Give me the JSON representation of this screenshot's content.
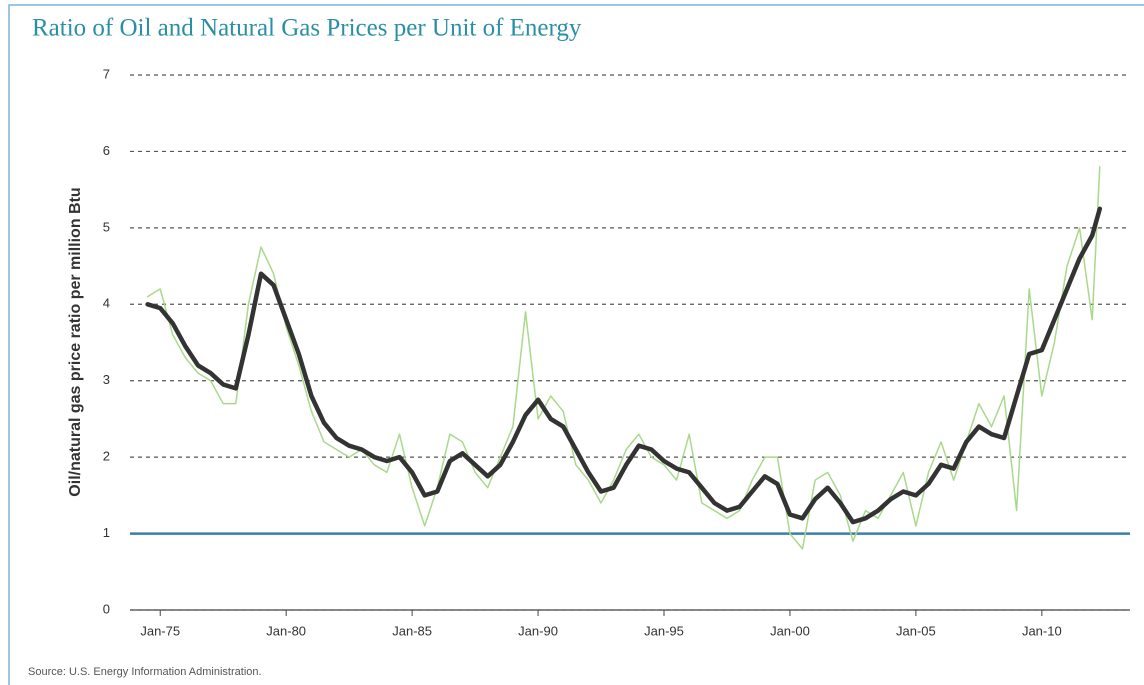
{
  "chart_data": {
    "type": "line",
    "title": "Ratio of Oil and Natural Gas Prices per Unit of Energy",
    "y_label": "Oil/natural gas price ratio per million Btu",
    "source": "Source: U.S. Energy Information Administration.",
    "x": [
      1974.5,
      1975,
      1975.5,
      1976,
      1976.5,
      1977,
      1977.5,
      1978,
      1978.5,
      1979,
      1979.5,
      1980,
      1980.5,
      1981,
      1981.5,
      1982,
      1982.5,
      1983,
      1983.5,
      1984,
      1984.5,
      1985,
      1985.5,
      1986,
      1986.5,
      1987,
      1987.5,
      1988,
      1988.5,
      1989,
      1989.5,
      1990,
      1990.5,
      1991,
      1991.5,
      1992,
      1992.5,
      1993,
      1993.5,
      1994,
      1994.5,
      1995,
      1995.5,
      1996,
      1996.5,
      1997,
      1997.5,
      1998,
      1998.5,
      1999,
      1999.5,
      2000,
      2000.5,
      2001,
      2001.5,
      2002,
      2002.5,
      2003,
      2003.5,
      2004,
      2004.5,
      2005,
      2005.5,
      2006,
      2006.5,
      2007,
      2007.5,
      2008,
      2008.5,
      2009,
      2009.5,
      2010,
      2010.5,
      2011,
      2011.5,
      2012,
      2012.3
    ],
    "series": [
      {
        "color": "#a9d98c",
        "width": 1.5,
        "values": [
          4.1,
          4.2,
          3.6,
          3.3,
          3.1,
          3.0,
          2.7,
          2.7,
          4.0,
          4.75,
          4.4,
          3.7,
          3.2,
          2.6,
          2.2,
          2.1,
          2.0,
          2.1,
          1.9,
          1.8,
          2.3,
          1.6,
          1.1,
          1.6,
          2.3,
          2.2,
          1.8,
          1.6,
          2.0,
          2.4,
          3.9,
          2.5,
          2.8,
          2.6,
          1.9,
          1.7,
          1.4,
          1.7,
          2.1,
          2.3,
          2.0,
          1.9,
          1.7,
          2.3,
          1.4,
          1.3,
          1.2,
          1.3,
          1.7,
          2.0,
          2.0,
          1.0,
          0.8,
          1.7,
          1.8,
          1.5,
          0.9,
          1.3,
          1.2,
          1.5,
          1.8,
          1.1,
          1.8,
          2.2,
          1.7,
          2.2,
          2.7,
          2.4,
          2.8,
          1.3,
          4.2,
          2.8,
          3.5,
          4.5,
          5.0,
          3.8,
          5.8
        ]
      },
      {
        "color": "#333333",
        "width": 4.5,
        "values": [
          4.0,
          3.95,
          3.75,
          3.45,
          3.2,
          3.1,
          2.95,
          2.9,
          3.6,
          4.4,
          4.25,
          3.8,
          3.35,
          2.8,
          2.45,
          2.25,
          2.15,
          2.1,
          2.0,
          1.95,
          2.0,
          1.8,
          1.5,
          1.55,
          1.95,
          2.05,
          1.9,
          1.75,
          1.9,
          2.2,
          2.55,
          2.75,
          2.5,
          2.4,
          2.1,
          1.8,
          1.55,
          1.6,
          1.9,
          2.15,
          2.1,
          1.95,
          1.85,
          1.8,
          1.6,
          1.4,
          1.3,
          1.35,
          1.55,
          1.75,
          1.65,
          1.25,
          1.2,
          1.45,
          1.6,
          1.4,
          1.15,
          1.2,
          1.3,
          1.45,
          1.55,
          1.5,
          1.65,
          1.9,
          1.85,
          2.2,
          2.4,
          2.3,
          2.25,
          2.8,
          3.35,
          3.4,
          3.8,
          4.2,
          4.6,
          4.9,
          5.25
        ]
      }
    ],
    "reference_line": {
      "value": 1,
      "color": "#3a7fa8"
    },
    "xlim": [
      1973.8,
      2013.5
    ],
    "ylim": [
      0,
      7
    ],
    "xticks": [
      {
        "value": 1975,
        "label": "Jan-75"
      },
      {
        "value": 1980,
        "label": "Jan-80"
      },
      {
        "value": 1985,
        "label": "Jan-85"
      },
      {
        "value": 1990,
        "label": "Jan-90"
      },
      {
        "value": 1995,
        "label": "Jan-95"
      },
      {
        "value": 2000,
        "label": "Jan-00"
      },
      {
        "value": 2005,
        "label": "Jan-05"
      },
      {
        "value": 2010,
        "label": "Jan-10"
      }
    ],
    "yticks": [
      0,
      1,
      2,
      3,
      4,
      5,
      6,
      7
    ],
    "grid": true
  }
}
